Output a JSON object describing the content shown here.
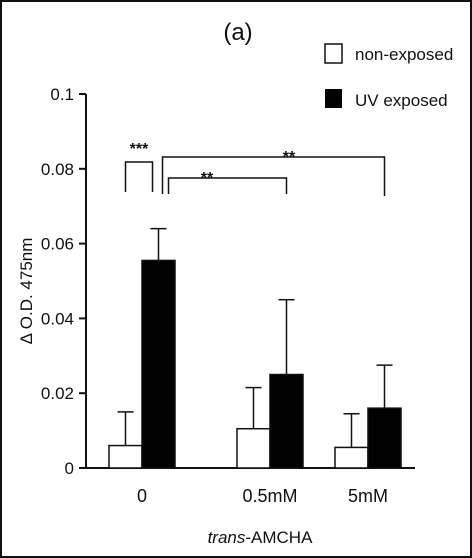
{
  "chart_data": {
    "type": "bar",
    "panel_label": "(a)",
    "xlabel": "trans-AMCHA",
    "xlabel_prefix": "trans",
    "xlabel_suffix": "-AMCHA",
    "ylabel": "Δ O.D. 475nm",
    "ylim": [
      0,
      0.1
    ],
    "yticks": [
      0,
      0.02,
      0.04,
      0.06,
      0.08,
      0.1
    ],
    "ytick_labels": [
      "0",
      "0.02",
      "0.04",
      "0.06",
      "0.08",
      "0.1"
    ],
    "categories": [
      "0",
      "0.5mM",
      "5mM"
    ],
    "series": [
      {
        "name": "non-exposed",
        "color": "#ffffff",
        "values": [
          0.006,
          0.0105,
          0.0055
        ],
        "errors": [
          0.009,
          0.011,
          0.009
        ]
      },
      {
        "name": "UV exposed",
        "color": "#000000",
        "values": [
          0.0555,
          0.025,
          0.016
        ],
        "errors": [
          0.0085,
          0.02,
          0.0115
        ]
      }
    ],
    "annotations": [
      {
        "text": "***",
        "between": [
          "0 / non-exposed",
          "0 / UV exposed"
        ]
      },
      {
        "text": "**",
        "between": [
          "0 / UV exposed",
          "0.5mM / UV exposed"
        ]
      },
      {
        "text": "**",
        "between": [
          "0 / UV exposed",
          "5mM / UV exposed"
        ]
      }
    ],
    "legend_position": "top-right"
  }
}
